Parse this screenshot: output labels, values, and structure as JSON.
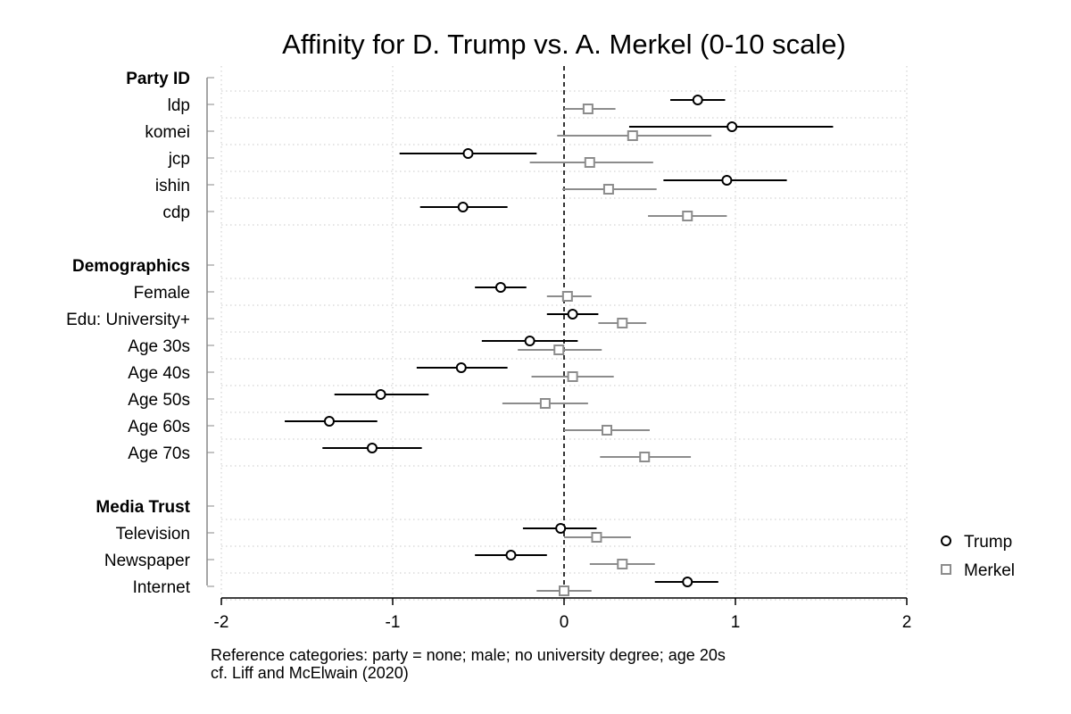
{
  "chart_data": {
    "type": "scatter",
    "subtype": "coefficient-plot",
    "title": "Affinity for D. Trump vs. A. Merkel (0-10 scale)",
    "xlabel": "",
    "ylabel": "",
    "xlim": [
      -2,
      2
    ],
    "xticks": [
      "-2",
      "-1",
      "0",
      "1",
      "2"
    ],
    "x_tick_values": [
      -2,
      -1,
      0,
      1,
      2
    ],
    "reference_line": 0,
    "grid": "dotted horizontal",
    "legend_position": "right",
    "notes": [
      "Reference categories: party = none; male; no university degree; age 20s",
      "cf. Liff and McElwain (2020)"
    ],
    "series": [
      {
        "name": "Trump",
        "marker": "circle",
        "color": "#000000"
      },
      {
        "name": "Merkel",
        "marker": "square",
        "color": "#8c8c8c"
      }
    ],
    "groups": [
      {
        "label": "Party ID",
        "rows": [
          {
            "label": "ldp",
            "trump": {
              "est": 0.78,
              "lo": 0.62,
              "hi": 0.94
            },
            "merkel": {
              "est": 0.14,
              "lo": 0.0,
              "hi": 0.3
            }
          },
          {
            "label": "komei",
            "trump": {
              "est": 0.98,
              "lo": 0.38,
              "hi": 1.57
            },
            "merkel": {
              "est": 0.4,
              "lo": -0.04,
              "hi": 0.86
            }
          },
          {
            "label": "jcp",
            "trump": {
              "est": -0.56,
              "lo": -0.96,
              "hi": -0.16
            },
            "merkel": {
              "est": 0.15,
              "lo": -0.2,
              "hi": 0.52
            }
          },
          {
            "label": "ishin",
            "trump": {
              "est": 0.95,
              "lo": 0.58,
              "hi": 1.3
            },
            "merkel": {
              "est": 0.26,
              "lo": -0.01,
              "hi": 0.54
            }
          },
          {
            "label": "cdp",
            "trump": {
              "est": -0.59,
              "lo": -0.84,
              "hi": -0.33
            },
            "merkel": {
              "est": 0.72,
              "lo": 0.49,
              "hi": 0.95
            }
          }
        ]
      },
      {
        "label": "Demographics",
        "rows": [
          {
            "label": "Female",
            "trump": {
              "est": -0.37,
              "lo": -0.52,
              "hi": -0.22
            },
            "merkel": {
              "est": 0.02,
              "lo": -0.1,
              "hi": 0.16
            }
          },
          {
            "label": "Edu: University+",
            "trump": {
              "est": 0.05,
              "lo": -0.1,
              "hi": 0.2
            },
            "merkel": {
              "est": 0.34,
              "lo": 0.2,
              "hi": 0.48
            }
          },
          {
            "label": "Age 30s",
            "trump": {
              "est": -0.2,
              "lo": -0.48,
              "hi": 0.08
            },
            "merkel": {
              "est": -0.03,
              "lo": -0.27,
              "hi": 0.22
            }
          },
          {
            "label": "Age 40s",
            "trump": {
              "est": -0.6,
              "lo": -0.86,
              "hi": -0.33
            },
            "merkel": {
              "est": 0.05,
              "lo": -0.19,
              "hi": 0.29
            }
          },
          {
            "label": "Age 50s",
            "trump": {
              "est": -1.07,
              "lo": -1.34,
              "hi": -0.79
            },
            "merkel": {
              "est": -0.11,
              "lo": -0.36,
              "hi": 0.14
            }
          },
          {
            "label": "Age 60s",
            "trump": {
              "est": -1.37,
              "lo": -1.63,
              "hi": -1.09
            },
            "merkel": {
              "est": 0.25,
              "lo": 0.0,
              "hi": 0.5
            }
          },
          {
            "label": "Age 70s",
            "trump": {
              "est": -1.12,
              "lo": -1.41,
              "hi": -0.83
            },
            "merkel": {
              "est": 0.47,
              "lo": 0.21,
              "hi": 0.74
            }
          }
        ]
      },
      {
        "label": "Media Trust",
        "rows": [
          {
            "label": "Television",
            "trump": {
              "est": -0.02,
              "lo": -0.24,
              "hi": 0.19
            },
            "merkel": {
              "est": 0.19,
              "lo": 0.0,
              "hi": 0.39
            }
          },
          {
            "label": "Newspaper",
            "trump": {
              "est": -0.31,
              "lo": -0.52,
              "hi": -0.1
            },
            "merkel": {
              "est": 0.34,
              "lo": 0.15,
              "hi": 0.53
            }
          },
          {
            "label": "Internet",
            "trump": {
              "est": 0.72,
              "lo": 0.53,
              "hi": 0.9
            },
            "merkel": {
              "est": 0.0,
              "lo": -0.16,
              "hi": 0.16
            }
          }
        ]
      }
    ]
  }
}
